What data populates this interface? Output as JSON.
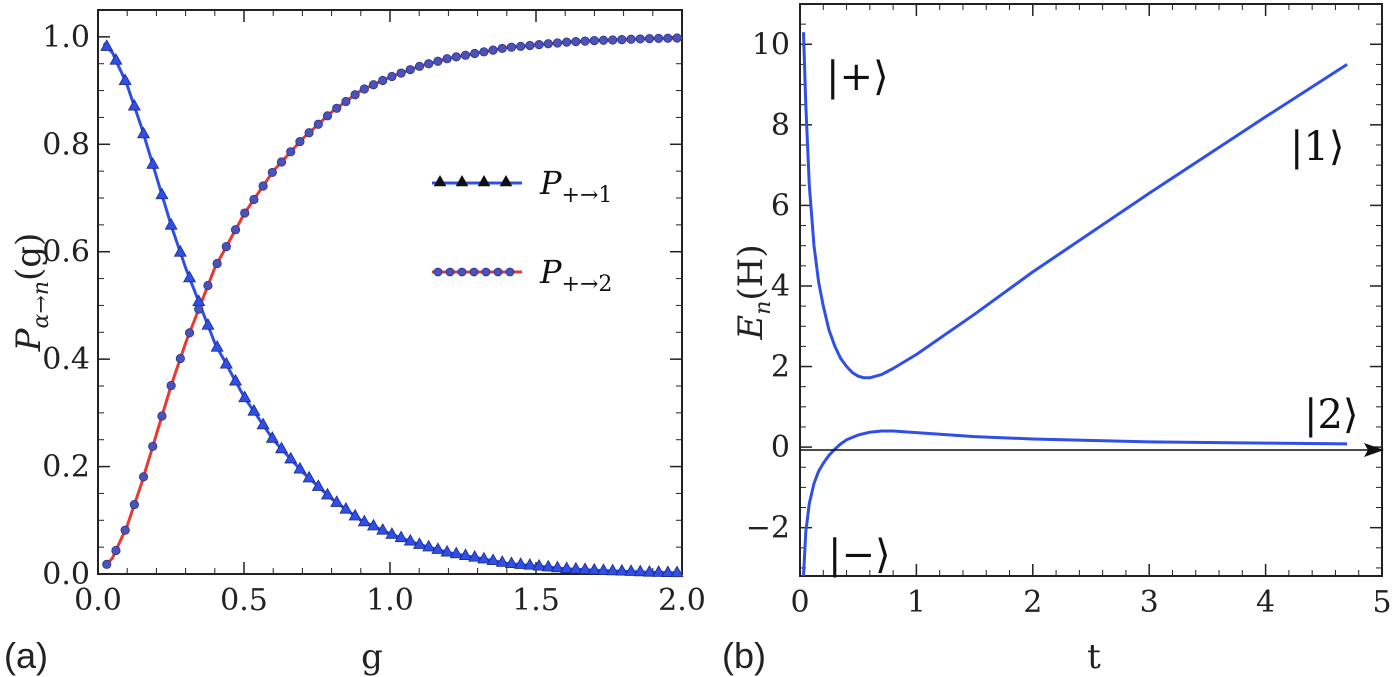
{
  "chart_data": [
    {
      "type": "line",
      "panel_label": "(a)",
      "xlabel": "g",
      "ylabel": "P",
      "ylabel_sub": "α→n",
      "ylabel_arg": "(g)",
      "xlim": [
        0,
        2
      ],
      "ylim": [
        0,
        1.05
      ],
      "xticks": [
        0,
        0.5,
        1,
        1.5,
        2
      ],
      "xtick_labels": [
        "0.0",
        "0.5",
        "1.0",
        "1.5",
        "2.0"
      ],
      "yticks": [
        0,
        0.2,
        0.4,
        0.6,
        0.8,
        1.0
      ],
      "ytick_labels": [
        "0.0",
        "0.2",
        "0.4",
        "0.6",
        "0.8",
        "1.0"
      ],
      "x": [
        0.0,
        0.05,
        0.1,
        0.15,
        0.2,
        0.25,
        0.3,
        0.35,
        0.4,
        0.5,
        0.6,
        0.7,
        0.8,
        0.9,
        1.0,
        1.1,
        1.2,
        1.3,
        1.4,
        1.5,
        1.6,
        1.7,
        1.8,
        1.9,
        2.0
      ],
      "series": [
        {
          "name": "P+→1",
          "legend_main": "P",
          "legend_sub": "+→1",
          "color": "#2f4fe6",
          "marker": "triangle",
          "values": [
            1.0,
            0.97,
            0.91,
            0.83,
            0.74,
            0.65,
            0.57,
            0.5,
            0.43,
            0.33,
            0.25,
            0.19,
            0.14,
            0.1,
            0.075,
            0.055,
            0.04,
            0.03,
            0.02,
            0.015,
            0.01,
            0.007,
            0.005,
            0.003,
            0.002
          ]
        },
        {
          "name": "P+→2",
          "legend_main": "P",
          "legend_sub": "+→2",
          "color": "#e83a30",
          "marker": "circle",
          "values": [
            0.0,
            0.03,
            0.09,
            0.17,
            0.26,
            0.35,
            0.43,
            0.5,
            0.57,
            0.67,
            0.75,
            0.81,
            0.86,
            0.9,
            0.925,
            0.945,
            0.96,
            0.97,
            0.98,
            0.985,
            0.99,
            0.993,
            0.995,
            0.997,
            0.998
          ]
        }
      ],
      "legend_position": "center-right"
    },
    {
      "type": "line",
      "panel_label": "(b)",
      "xlabel": "t",
      "ylabel": "E",
      "ylabel_sub": "n",
      "ylabel_arg": "(H)",
      "xlim": [
        0,
        5
      ],
      "ylim": [
        -3.2,
        11
      ],
      "xticks": [
        0,
        1,
        2,
        3,
        4,
        5
      ],
      "xtick_labels": [
        "0",
        "1",
        "2",
        "3",
        "4",
        "5"
      ],
      "yticks": [
        -2,
        0,
        2,
        4,
        6,
        8,
        10
      ],
      "ytick_labels": [
        "−2",
        "0",
        "2",
        "4",
        "6",
        "8",
        "10"
      ],
      "series": [
        {
          "name": "upper level",
          "color": "#2f4fe6",
          "x": [
            0.03,
            0.05,
            0.08,
            0.12,
            0.16,
            0.2,
            0.25,
            0.3,
            0.35,
            0.4,
            0.45,
            0.5,
            0.55,
            0.6,
            0.7,
            0.8,
            1.0,
            1.5,
            2.0,
            3.0,
            4.0,
            4.7
          ],
          "y": [
            10.3,
            8.5,
            6.5,
            5.0,
            4.1,
            3.5,
            2.9,
            2.5,
            2.2,
            2.0,
            1.85,
            1.76,
            1.72,
            1.72,
            1.8,
            1.95,
            2.3,
            3.3,
            4.35,
            6.3,
            8.2,
            9.5
          ]
        },
        {
          "name": "lower level",
          "color": "#2f4fe6",
          "x": [
            0.03,
            0.05,
            0.08,
            0.12,
            0.16,
            0.2,
            0.25,
            0.3,
            0.35,
            0.4,
            0.5,
            0.6,
            0.7,
            0.8,
            1.0,
            1.5,
            2.0,
            3.0,
            4.0,
            4.7
          ],
          "y": [
            -3.2,
            -2.1,
            -1.4,
            -0.9,
            -0.6,
            -0.4,
            -0.2,
            -0.05,
            0.08,
            0.18,
            0.3,
            0.37,
            0.4,
            0.4,
            0.36,
            0.26,
            0.2,
            0.13,
            0.1,
            0.08
          ]
        }
      ],
      "annotations": [
        "|+⟩",
        "|1⟩",
        "|2⟩",
        "|−⟩"
      ]
    }
  ]
}
